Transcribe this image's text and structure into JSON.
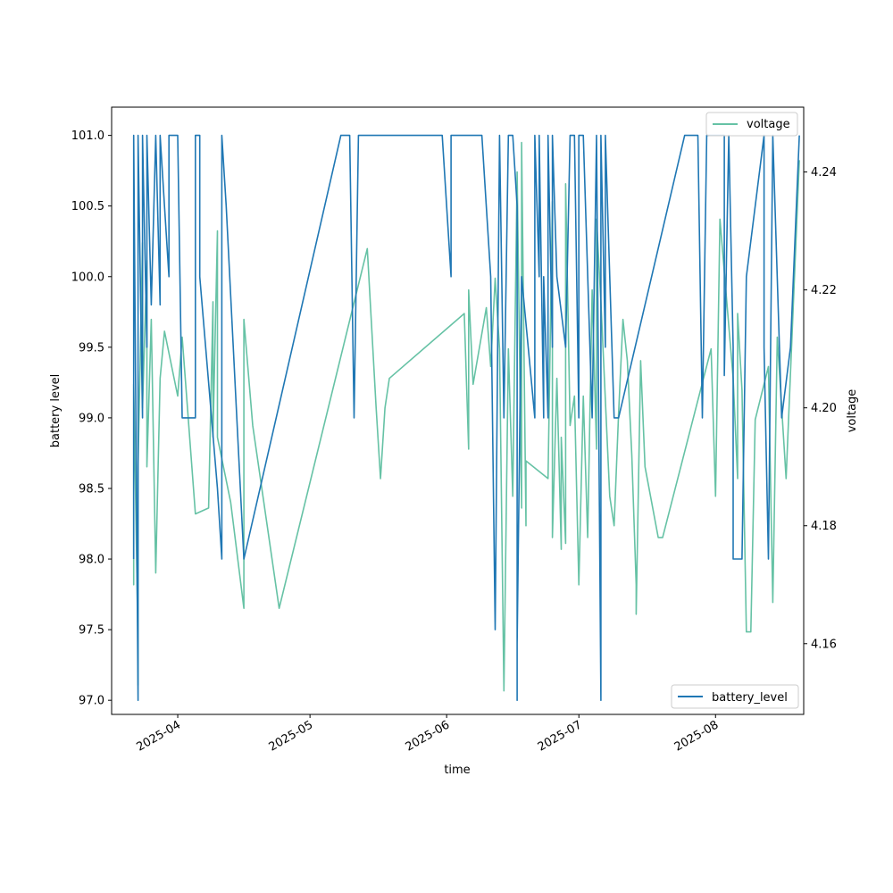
{
  "chart_data": {
    "type": "line",
    "xlabel": "time",
    "ylabel_left": "battery level",
    "ylabel_right": "voltage",
    "x_ticks": [
      "2025-04",
      "2025-05",
      "2025-06",
      "2025-07",
      "2025-08"
    ],
    "xlim": [
      "2025-03-17",
      "2025-08-21"
    ],
    "y_left": {
      "lim": [
        96.9,
        101.2
      ],
      "ticks": [
        "97.0",
        "97.5",
        "98.0",
        "98.5",
        "99.0",
        "99.5",
        "100.0",
        "100.5",
        "101.0"
      ]
    },
    "y_right": {
      "lim": [
        4.148,
        4.251
      ],
      "ticks": [
        "4.16",
        "4.18",
        "4.20",
        "4.22",
        "4.24"
      ]
    },
    "legend_left": {
      "label": "battery_level",
      "placement": "lower-right"
    },
    "legend_right": {
      "label": "voltage",
      "placement": "upper-right"
    },
    "colors": {
      "battery_level": "#1f77b4",
      "voltage": "#66c2a5"
    },
    "series": [
      {
        "name": "battery_level",
        "axis": "left",
        "points": [
          [
            "2025-03-22",
            98.0
          ],
          [
            "2025-03-22",
            101.0
          ],
          [
            "2025-03-22",
            99.2
          ],
          [
            "2025-03-22",
            101.0
          ],
          [
            "2025-03-23",
            97.0
          ],
          [
            "2025-03-23",
            97.1
          ],
          [
            "2025-03-23",
            101.0
          ],
          [
            "2025-03-24",
            99.0
          ],
          [
            "2025-03-24",
            101.0
          ],
          [
            "2025-03-25",
            99.5
          ],
          [
            "2025-03-25",
            101.0
          ],
          [
            "2025-03-26",
            99.8
          ],
          [
            "2025-03-27",
            101.0
          ],
          [
            "2025-03-28",
            99.8
          ],
          [
            "2025-03-28",
            101.0
          ],
          [
            "2025-03-29",
            100.5
          ],
          [
            "2025-03-30",
            100.0
          ],
          [
            "2025-03-30",
            101.0
          ],
          [
            "2025-04-01",
            101.0
          ],
          [
            "2025-04-02",
            99.0
          ],
          [
            "2025-04-04",
            99.0
          ],
          [
            "2025-04-05",
            99.0
          ],
          [
            "2025-04-05",
            101.0
          ],
          [
            "2025-04-06",
            101.0
          ],
          [
            "2025-04-06",
            100.0
          ],
          [
            "2025-04-10",
            98.5
          ],
          [
            "2025-04-11",
            98.0
          ],
          [
            "2025-04-11",
            101.0
          ],
          [
            "2025-04-12",
            100.5
          ],
          [
            "2025-04-16",
            98.0
          ],
          [
            "2025-05-08",
            101.0
          ],
          [
            "2025-05-10",
            101.0
          ],
          [
            "2025-05-11",
            99.0
          ],
          [
            "2025-05-12",
            101.0
          ],
          [
            "2025-05-31",
            101.0
          ],
          [
            "2025-06-02",
            100.0
          ],
          [
            "2025-06-02",
            101.0
          ],
          [
            "2025-06-09",
            101.0
          ],
          [
            "2025-06-11",
            100.0
          ],
          [
            "2025-06-12",
            97.5
          ],
          [
            "2025-06-13",
            101.0
          ],
          [
            "2025-06-14",
            99.0
          ],
          [
            "2025-06-15",
            101.0
          ],
          [
            "2025-06-16",
            101.0
          ],
          [
            "2025-06-17",
            100.5
          ],
          [
            "2025-06-17",
            97.0
          ],
          [
            "2025-06-17",
            97.4
          ],
          [
            "2025-06-18",
            100.0
          ],
          [
            "2025-06-21",
            99.0
          ],
          [
            "2025-06-21",
            101.0
          ],
          [
            "2025-06-22",
            100.0
          ],
          [
            "2025-06-22",
            101.0
          ],
          [
            "2025-06-23",
            99.0
          ],
          [
            "2025-06-23",
            100.0
          ],
          [
            "2025-06-24",
            99.0
          ],
          [
            "2025-06-24",
            101.0
          ],
          [
            "2025-06-25",
            99.5
          ],
          [
            "2025-06-25",
            101.0
          ],
          [
            "2025-06-26",
            100.0
          ],
          [
            "2025-06-28",
            99.5
          ],
          [
            "2025-06-29",
            101.0
          ],
          [
            "2025-06-30",
            101.0
          ],
          [
            "2025-07-01",
            99.0
          ],
          [
            "2025-07-01",
            101.0
          ],
          [
            "2025-07-02",
            101.0
          ],
          [
            "2025-07-04",
            99.0
          ],
          [
            "2025-07-05",
            101.0
          ],
          [
            "2025-07-06",
            97.0
          ],
          [
            "2025-07-06",
            97.1
          ],
          [
            "2025-07-06",
            101.0
          ],
          [
            "2025-07-07",
            99.5
          ],
          [
            "2025-07-07",
            101.0
          ],
          [
            "2025-07-09",
            99.0
          ],
          [
            "2025-07-10",
            99.0
          ],
          [
            "2025-07-25",
            101.0
          ],
          [
            "2025-07-28",
            101.0
          ],
          [
            "2025-07-29",
            99.0
          ],
          [
            "2025-07-30",
            101.0
          ],
          [
            "2025-08-03",
            101.0
          ],
          [
            "2025-08-03",
            99.3
          ],
          [
            "2025-08-04",
            101.0
          ],
          [
            "2025-08-05",
            99.5
          ],
          [
            "2025-08-05",
            98.0
          ],
          [
            "2025-08-07",
            98.0
          ],
          [
            "2025-08-08",
            100.0
          ],
          [
            "2025-08-12",
            101.0
          ],
          [
            "2025-08-12",
            99.5
          ],
          [
            "2025-08-13",
            98.0
          ],
          [
            "2025-08-14",
            101.0
          ],
          [
            "2025-08-16",
            99.0
          ],
          [
            "2025-08-18",
            99.5
          ],
          [
            "2025-08-20",
            101.0
          ]
        ]
      },
      {
        "name": "voltage",
        "axis": "right",
        "points": [
          [
            "2025-03-22",
            4.173
          ],
          [
            "2025-03-22",
            4.17
          ],
          [
            "2025-03-22",
            4.204
          ],
          [
            "2025-03-23",
            4.16
          ],
          [
            "2025-03-23",
            4.153
          ],
          [
            "2025-03-23",
            4.19
          ],
          [
            "2025-03-24",
            4.228
          ],
          [
            "2025-03-24",
            4.2
          ],
          [
            "2025-03-25",
            4.225
          ],
          [
            "2025-03-25",
            4.19
          ],
          [
            "2025-03-26",
            4.215
          ],
          [
            "2025-03-27",
            4.172
          ],
          [
            "2025-03-28",
            4.205
          ],
          [
            "2025-03-29",
            4.213
          ],
          [
            "2025-04-01",
            4.202
          ],
          [
            "2025-04-02",
            4.212
          ],
          [
            "2025-04-05",
            4.182
          ],
          [
            "2025-04-08",
            4.183
          ],
          [
            "2025-04-09",
            4.218
          ],
          [
            "2025-04-09",
            4.195
          ],
          [
            "2025-04-10",
            4.23
          ],
          [
            "2025-04-10",
            4.195
          ],
          [
            "2025-04-13",
            4.184
          ],
          [
            "2025-04-16",
            4.166
          ],
          [
            "2025-04-16",
            4.215
          ],
          [
            "2025-04-18",
            4.197
          ],
          [
            "2025-04-24",
            4.166
          ],
          [
            "2025-05-14",
            4.227
          ],
          [
            "2025-05-16",
            4.2
          ],
          [
            "2025-05-17",
            4.188
          ],
          [
            "2025-05-18",
            4.2
          ],
          [
            "2025-05-19",
            4.205
          ],
          [
            "2025-06-05",
            4.216
          ],
          [
            "2025-06-06",
            4.193
          ],
          [
            "2025-06-06",
            4.22
          ],
          [
            "2025-06-07",
            4.204
          ],
          [
            "2025-06-10",
            4.217
          ],
          [
            "2025-06-11",
            4.207
          ],
          [
            "2025-06-12",
            4.222
          ],
          [
            "2025-06-13",
            4.21
          ],
          [
            "2025-06-14",
            4.152
          ],
          [
            "2025-06-15",
            4.21
          ],
          [
            "2025-06-16",
            4.185
          ],
          [
            "2025-06-17",
            4.24
          ],
          [
            "2025-06-18",
            4.183
          ],
          [
            "2025-06-18",
            4.245
          ],
          [
            "2025-06-19",
            4.18
          ],
          [
            "2025-06-19",
            4.191
          ],
          [
            "2025-06-24",
            4.188
          ],
          [
            "2025-06-25",
            4.235
          ],
          [
            "2025-06-25",
            4.178
          ],
          [
            "2025-06-26",
            4.205
          ],
          [
            "2025-06-27",
            4.176
          ],
          [
            "2025-06-27",
            4.195
          ],
          [
            "2025-06-28",
            4.177
          ],
          [
            "2025-06-28",
            4.238
          ],
          [
            "2025-06-29",
            4.197
          ],
          [
            "2025-06-30",
            4.202
          ],
          [
            "2025-07-01",
            4.17
          ],
          [
            "2025-07-02",
            4.202
          ],
          [
            "2025-07-03",
            4.178
          ],
          [
            "2025-07-04",
            4.22
          ],
          [
            "2025-07-05",
            4.193
          ],
          [
            "2025-07-05",
            4.232
          ],
          [
            "2025-07-06",
            4.218
          ],
          [
            "2025-07-08",
            4.185
          ],
          [
            "2025-07-09",
            4.18
          ],
          [
            "2025-07-10",
            4.199
          ],
          [
            "2025-07-11",
            4.215
          ],
          [
            "2025-07-12",
            4.208
          ],
          [
            "2025-07-13",
            4.192
          ],
          [
            "2025-07-14",
            4.17
          ],
          [
            "2025-07-14",
            4.165
          ],
          [
            "2025-07-15",
            4.208
          ],
          [
            "2025-07-16",
            4.19
          ],
          [
            "2025-07-19",
            4.178
          ],
          [
            "2025-07-20",
            4.178
          ],
          [
            "2025-07-31",
            4.21
          ],
          [
            "2025-08-01",
            4.185
          ],
          [
            "2025-08-02",
            4.232
          ],
          [
            "2025-08-05",
            4.205
          ],
          [
            "2025-08-06",
            4.188
          ],
          [
            "2025-08-06",
            4.216
          ],
          [
            "2025-08-07",
            4.203
          ],
          [
            "2025-08-08",
            4.162
          ],
          [
            "2025-08-09",
            4.162
          ],
          [
            "2025-08-10",
            4.198
          ],
          [
            "2025-08-13",
            4.207
          ],
          [
            "2025-08-14",
            4.167
          ],
          [
            "2025-08-15",
            4.212
          ],
          [
            "2025-08-17",
            4.188
          ],
          [
            "2025-08-20",
            4.242
          ]
        ]
      }
    ]
  }
}
